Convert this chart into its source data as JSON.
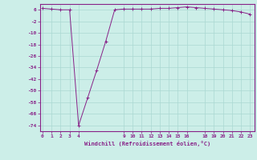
{
  "x": [
    0,
    1,
    2,
    3,
    4,
    5,
    6,
    7,
    8,
    9,
    10,
    11,
    12,
    13,
    14,
    15,
    16,
    17,
    18,
    19,
    20,
    21,
    22,
    23
  ],
  "y": [
    7,
    6.5,
    6,
    6,
    -74,
    -55,
    -36,
    -16,
    6,
    6.5,
    6.5,
    6.5,
    6.5,
    7,
    7,
    7.5,
    8,
    7.5,
    7,
    6.5,
    6,
    5.5,
    4.5,
    3
  ],
  "line_color": "#882288",
  "marker": "+",
  "marker_color": "#882288",
  "bg_color": "#cceee8",
  "grid_color": "#aad8d2",
  "xlabel": "Windchill (Refroidissement éolien,°C)",
  "xlabel_color": "#882288",
  "xticks": [
    0,
    1,
    2,
    3,
    4,
    9,
    10,
    11,
    12,
    13,
    14,
    15,
    16,
    18,
    19,
    20,
    21,
    22,
    23
  ],
  "xtick_labels": [
    "0",
    "1",
    "2",
    "3",
    "4",
    "9",
    "10",
    "11",
    "12",
    "13",
    "14",
    "15",
    "16",
    "18",
    "19",
    "20",
    "21",
    "22",
    "23"
  ],
  "yticks": [
    6,
    -2,
    -10,
    -18,
    -26,
    -34,
    -42,
    -50,
    -58,
    -66,
    -74
  ],
  "ylim": [
    -78,
    10
  ],
  "xlim": [
    -0.3,
    23.5
  ],
  "tick_color": "#882288",
  "spine_color": "#882288"
}
